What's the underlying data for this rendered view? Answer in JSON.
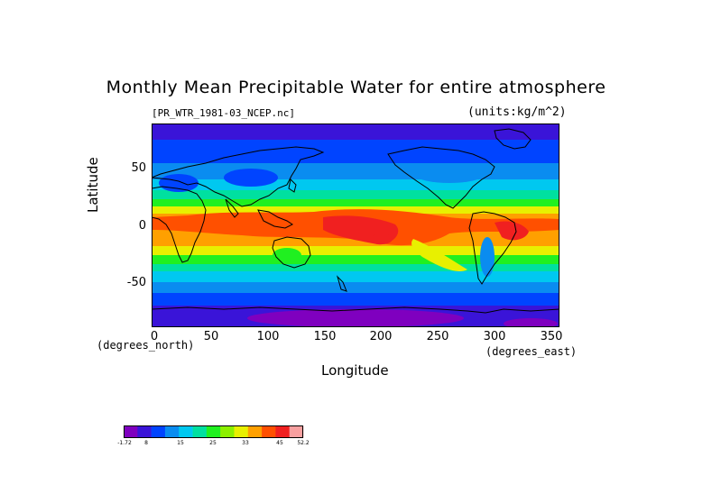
{
  "title": "Monthly Mean Precipitable Water for entire atmosphere",
  "subtitle_left": "[PR_WTR_1981-03_NCEP.nc]",
  "subtitle_right": "(units:kg/m^2)",
  "axes": {
    "x_label": "Longitude",
    "y_label": "Latitude",
    "x_units": "(degrees_east)",
    "y_units": "(degrees_north)",
    "x_ticks": [
      "0",
      "50",
      "100",
      "150",
      "200",
      "250",
      "300",
      "350"
    ],
    "y_ticks": [
      "50",
      "0",
      "-50"
    ],
    "x_range": [
      0,
      357.5
    ],
    "y_range": [
      -90,
      90
    ]
  },
  "colorbar": {
    "tick_labels": [
      "-1.72",
      "8",
      "15",
      "25",
      "33",
      "45",
      "52.2"
    ],
    "colors": [
      "#7f00bf",
      "#3a14d8",
      "#0044ff",
      "#0a8cf0",
      "#00c8f0",
      "#00e0a0",
      "#20f020",
      "#8cf000",
      "#e8f000",
      "#ffa000",
      "#ff5000",
      "#f02020",
      "#f8a0a0"
    ]
  },
  "map_colors": {
    "polar": "#3a14d8",
    "subpolar": "#0044ff",
    "mid": "#0a8cf0",
    "subtrop": "#00c8f0",
    "warm": "#00e0a0",
    "green": "#20f020",
    "yellow": "#e8f000",
    "orange": "#ffa000",
    "red": "#ff5000",
    "deep_red": "#f02020",
    "antarctic": "#7f00bf"
  },
  "chart_data": {
    "type": "heatmap",
    "title": "Monthly Mean Precipitable Water for entire atmosphere",
    "xlabel": "Longitude",
    "ylabel": "Latitude",
    "xlim": [
      0,
      357.5
    ],
    "ylim": [
      -90,
      90
    ],
    "value_range": [
      -1.72,
      52.2
    ],
    "units": "kg/m^2",
    "zonal_profile": [
      {
        "lat": 80,
        "value": 4
      },
      {
        "lat": 60,
        "value": 9
      },
      {
        "lat": 45,
        "value": 14
      },
      {
        "lat": 30,
        "value": 24
      },
      {
        "lat": 15,
        "value": 36
      },
      {
        "lat": 0,
        "value": 45
      },
      {
        "lat": -15,
        "value": 40
      },
      {
        "lat": -30,
        "value": 25
      },
      {
        "lat": -45,
        "value": 15
      },
      {
        "lat": -60,
        "value": 10
      },
      {
        "lat": -80,
        "value": 3
      }
    ]
  }
}
